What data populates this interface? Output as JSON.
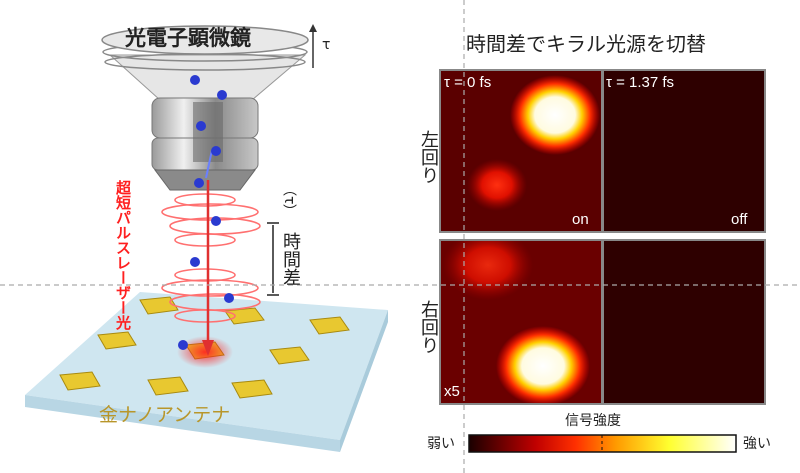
{
  "left": {
    "microscope_label": "光電子顕微鏡",
    "tau_symbol": "τ",
    "laser_label": "超短パルスレーザー光",
    "time_delay_label": "時間差",
    "time_delay_symbol": "（τ）",
    "antenna_label": "金ナノアンテナ"
  },
  "right": {
    "title": "時間差でキラル光源を切替",
    "row_labels": [
      "左回り",
      "右回り"
    ],
    "columns": [
      "τ = 0 fs",
      "τ = 1.37 fs"
    ],
    "state_labels": {
      "on": "on",
      "off": "off"
    },
    "scale_note": "x5",
    "colorbar": {
      "title": "信号強度",
      "low": "弱い",
      "high": "強い",
      "colors": [
        "#1a0000",
        "#c00000",
        "#ff3000",
        "#ff9a00",
        "#ffff30",
        "#ffffff"
      ]
    }
  },
  "colors": {
    "laser": "#ff2020",
    "electron": "#2a3ad0",
    "gold": "#e8c830",
    "substrate": "#cfe6f0",
    "antenna_text": "#b8962a"
  }
}
